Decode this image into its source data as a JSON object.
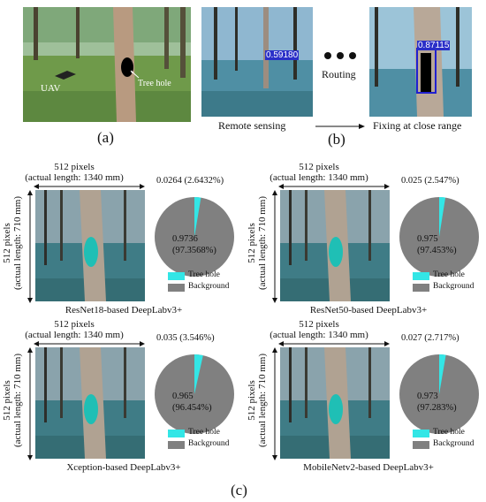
{
  "panel_a": {
    "label_uav": "UAV",
    "label_tree_hole": "Tree hole",
    "caption": "(a)"
  },
  "panel_b": {
    "conf_remote": "0.59180",
    "conf_close": "0.87115",
    "routing_label": "Routing",
    "remote_label": "Remote sensing",
    "fixing_label": "Fixing at close range",
    "caption": "(b)"
  },
  "panel_c": {
    "caption": "(c)",
    "dim_width_line1": "512 pixels",
    "dim_width_line2": "(actual length: 1340 mm)",
    "dim_height_line1": "512 pixels",
    "dim_height_line2": "(actual length: 710 mm)",
    "legend_tree_hole": "Tree hole",
    "legend_background": "Background",
    "color_tree_hole": "#33e6e6",
    "color_background": "#808080",
    "models": [
      {
        "name": "ResNet18-based DeepLabv3+",
        "hole_label": "0.0264 (2.6432%)",
        "bg_line1": "0.9736",
        "bg_line2": "(97.3568%)"
      },
      {
        "name": "ResNet50-based DeepLabv3+",
        "hole_label": "0.025 (2.547%)",
        "bg_line1": "0.975",
        "bg_line2": "(97.453%)"
      },
      {
        "name": "Xception-based DeepLabv3+",
        "hole_label": "0.035 (3.546%)",
        "bg_line1": "0.965",
        "bg_line2": "(96.454%)"
      },
      {
        "name": "MobileNetv2-based DeepLabv3+",
        "hole_label": "0.027 (2.717%)",
        "bg_line1": "0.973",
        "bg_line2": "(97.283%)"
      }
    ]
  },
  "chart_data": [
    {
      "type": "pie",
      "categories": [
        "Tree hole",
        "Background"
      ],
      "values": [
        0.0264,
        0.9736
      ]
    },
    {
      "type": "pie",
      "categories": [
        "Tree hole",
        "Background"
      ],
      "values": [
        0.025,
        0.975
      ]
    },
    {
      "type": "pie",
      "categories": [
        "Tree hole",
        "Background"
      ],
      "values": [
        0.035,
        0.965
      ]
    },
    {
      "type": "pie",
      "categories": [
        "Tree hole",
        "Background"
      ],
      "values": [
        0.027,
        0.973
      ]
    }
  ]
}
